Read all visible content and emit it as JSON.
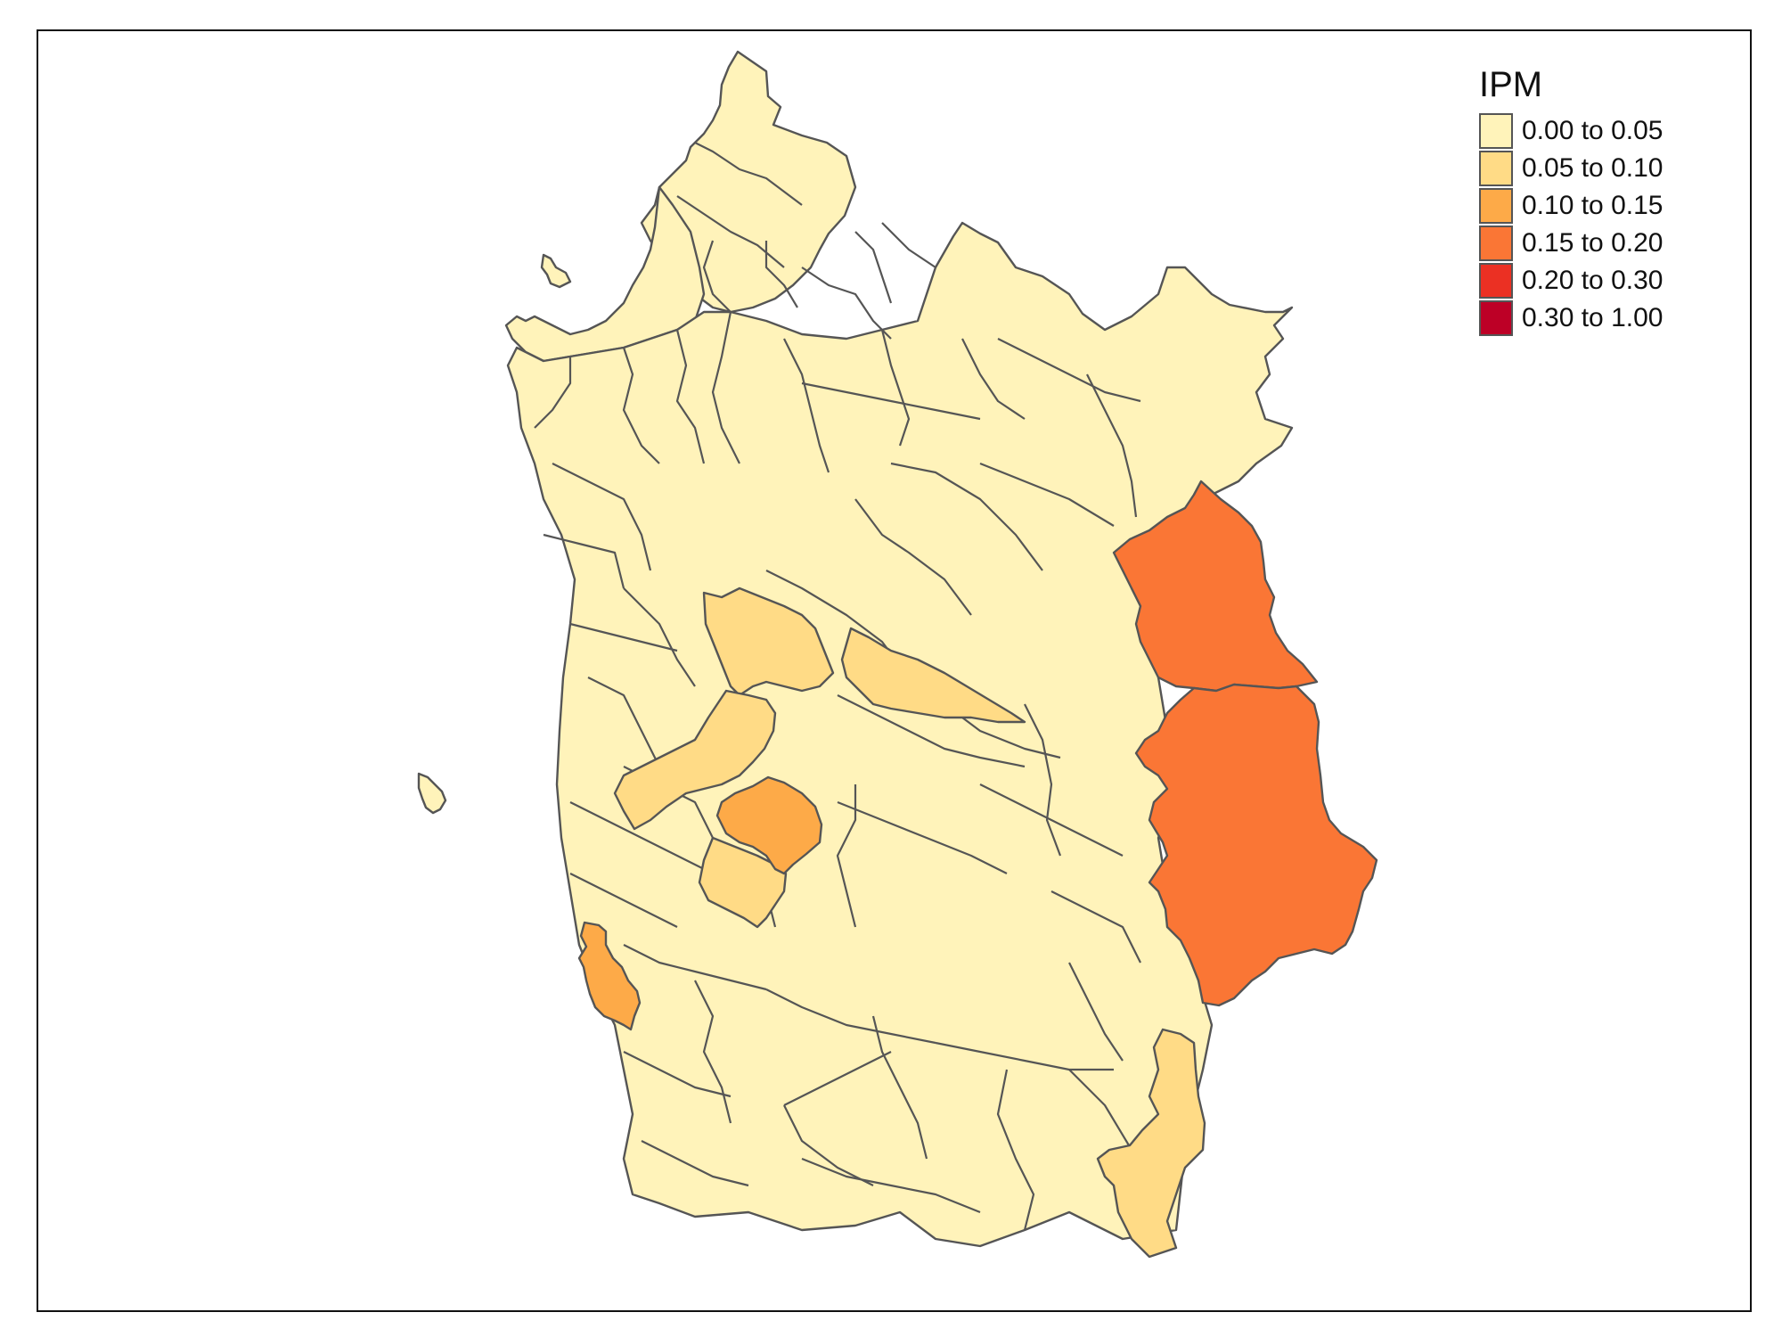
{
  "map": {
    "legend_title": "IPM",
    "legend": [
      {
        "label": "0.00 to 0.05",
        "color": "#FFF3BA"
      },
      {
        "label": "0.05 to 0.10",
        "color": "#FFDB86"
      },
      {
        "label": "0.10 to 0.15",
        "color": "#FDAA48"
      },
      {
        "label": "0.15 to 0.20",
        "color": "#FA7635"
      },
      {
        "label": "0.20 to 0.30",
        "color": "#EB3023"
      },
      {
        "label": "0.30 to 1.00",
        "color": "#BD0026"
      }
    ]
  }
}
